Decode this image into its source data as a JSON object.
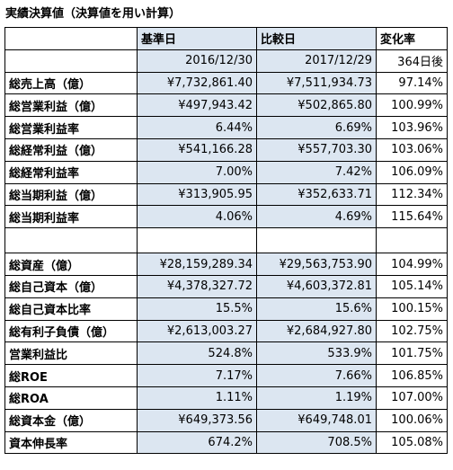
{
  "title": "実績決算値（決算値を用い計算）",
  "header": {
    "columns": [
      "基準日",
      "比較日",
      "変化率"
    ],
    "dates": [
      "2016/12/30",
      "2017/12/29",
      "364日後"
    ]
  },
  "groups": [
    [
      [
        "総売上高（億）",
        "¥7,732,861.40",
        "¥7,511,934.73",
        "97.14%"
      ],
      [
        "総営業利益（億）",
        "¥497,943.42",
        "¥502,865.80",
        "100.99%"
      ],
      [
        "総営業利益率",
        "6.44%",
        "6.69%",
        "103.96%"
      ],
      [
        "総経常利益（億）",
        "¥541,166.28",
        "¥557,703.30",
        "103.06%"
      ],
      [
        "総経常利益率",
        "7.00%",
        "7.42%",
        "106.09%"
      ],
      [
        "総当期利益（億）",
        "¥313,905.95",
        "¥352,633.71",
        "112.34%"
      ],
      [
        "総当期利益率",
        "4.06%",
        "4.69%",
        "115.64%"
      ]
    ],
    [
      [
        "総資産（億）",
        "¥28,159,289.34",
        "¥29,563,753.90",
        "104.99%"
      ],
      [
        "総自己資本（億）",
        "¥4,378,327.72",
        "¥4,603,372.81",
        "105.14%"
      ],
      [
        "総自己資本比率",
        "15.5%",
        "15.6%",
        "100.15%"
      ],
      [
        "総有利子負債（億）",
        "¥2,613,003.27",
        "¥2,684,927.80",
        "102.75%"
      ],
      [
        "営業利益比",
        "524.8%",
        "533.9%",
        "101.75%"
      ],
      [
        "総ROE",
        "7.17%",
        "7.66%",
        "106.85%"
      ],
      [
        "総ROA",
        "1.11%",
        "1.19%",
        "107.00%"
      ],
      [
        "総資本金（億）",
        "¥649,373.56",
        "¥649,748.01",
        "100.06%"
      ],
      [
        "資本伸長率",
        "674.2%",
        "708.5%",
        "105.08%"
      ]
    ]
  ]
}
